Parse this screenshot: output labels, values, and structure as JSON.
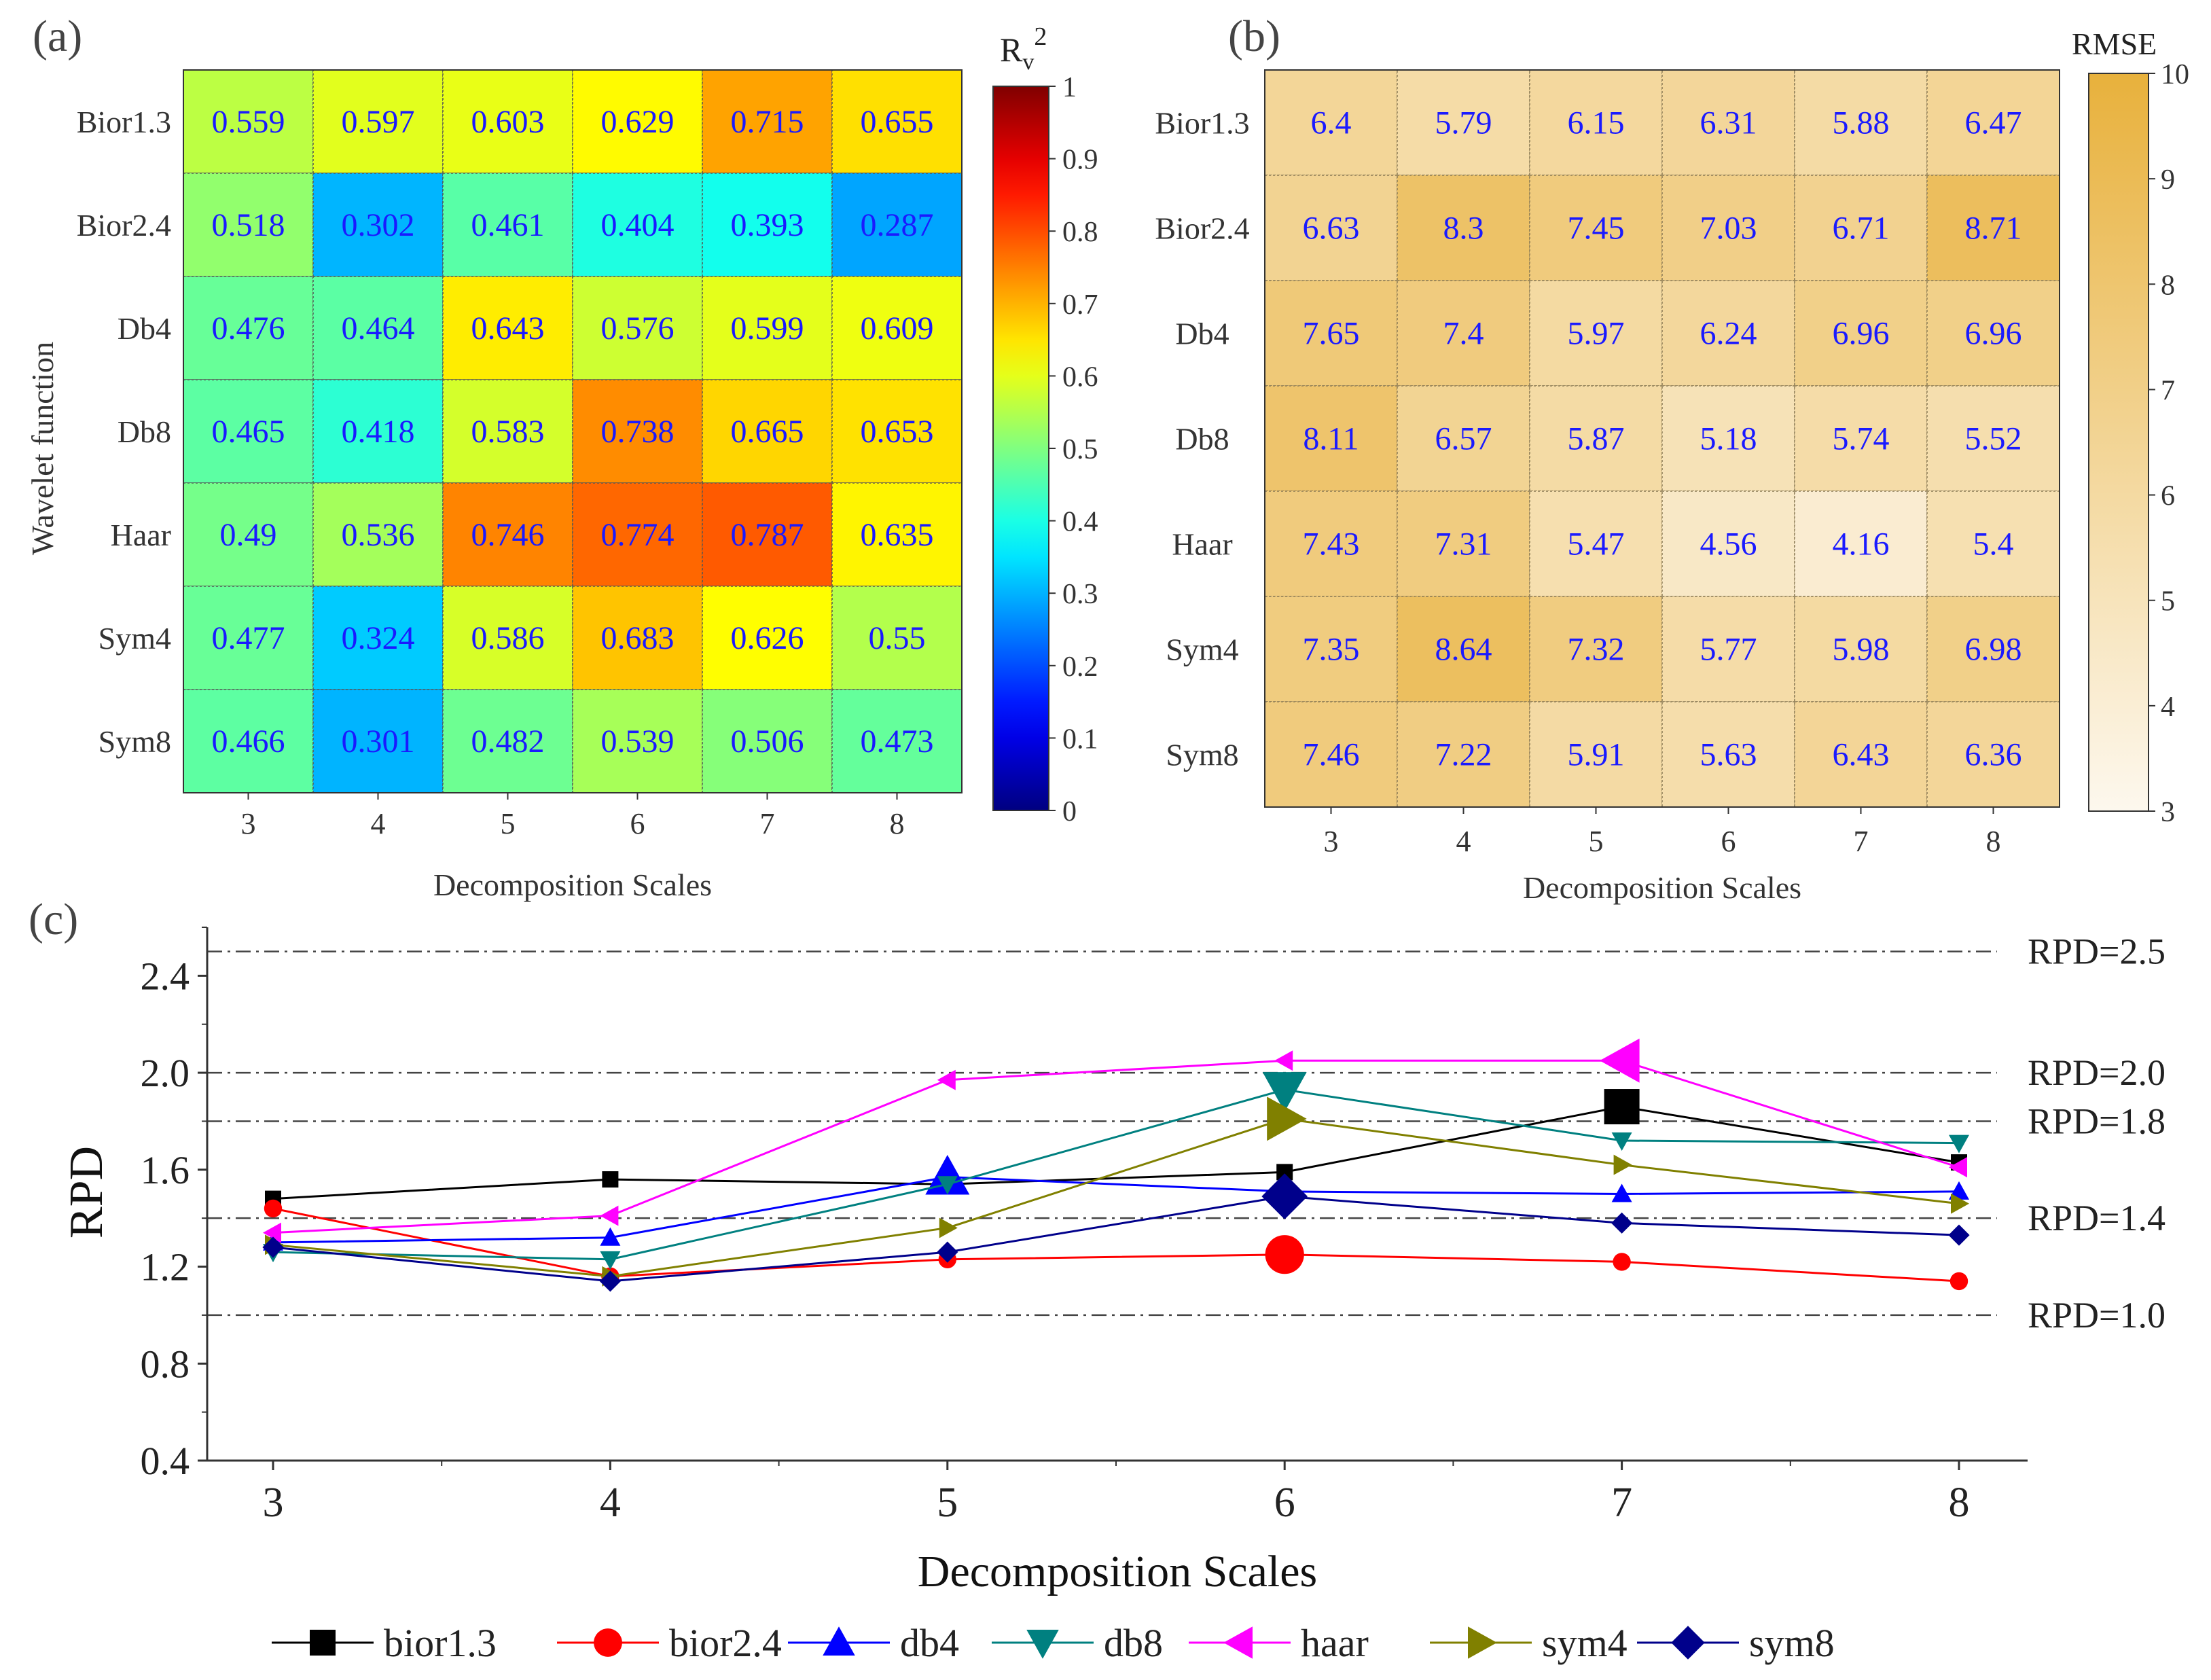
{
  "chart_data": [
    {
      "panel": "(a)",
      "type": "heatmap",
      "rows": [
        "Bior1.3",
        "Bior2.4",
        "Db4",
        "Db8",
        "Haar",
        "Sym4",
        "Sym8"
      ],
      "cols": [
        "3",
        "4",
        "5",
        "6",
        "7",
        "8"
      ],
      "values": [
        [
          0.559,
          0.597,
          0.603,
          0.629,
          0.715,
          0.655
        ],
        [
          0.518,
          0.302,
          0.461,
          0.404,
          0.393,
          0.287
        ],
        [
          0.476,
          0.464,
          0.643,
          0.576,
          0.599,
          0.609
        ],
        [
          0.465,
          0.418,
          0.583,
          0.738,
          0.665,
          0.653
        ],
        [
          0.49,
          0.536,
          0.746,
          0.774,
          0.787,
          0.635
        ],
        [
          0.477,
          0.324,
          0.586,
          0.683,
          0.626,
          0.55
        ],
        [
          0.466,
          0.301,
          0.482,
          0.539,
          0.506,
          0.473
        ]
      ],
      "xlabel": "Decomposition Scales",
      "ylabel": "Wavelet function",
      "colorbar": {
        "title": "R",
        "title_sub": "v",
        "title_sup": "2",
        "range": [
          0,
          1
        ],
        "ticks": [
          "0",
          "0.1",
          "0.2",
          "0.3",
          "0.4",
          "0.5",
          "0.6",
          "0.7",
          "0.8",
          "0.9",
          "1"
        ],
        "colormap": "jet"
      }
    },
    {
      "panel": "(b)",
      "type": "heatmap",
      "rows": [
        "Bior1.3",
        "Bior2.4",
        "Db4",
        "Db8",
        "Haar",
        "Sym4",
        "Sym8"
      ],
      "cols": [
        "3",
        "4",
        "5",
        "6",
        "7",
        "8"
      ],
      "values": [
        [
          6.4,
          5.79,
          6.15,
          6.31,
          5.88,
          6.47
        ],
        [
          6.63,
          8.3,
          7.45,
          7.03,
          6.71,
          8.71
        ],
        [
          7.65,
          7.4,
          5.97,
          6.24,
          6.96,
          6.96
        ],
        [
          8.11,
          6.57,
          5.87,
          5.18,
          5.74,
          5.52
        ],
        [
          7.43,
          7.31,
          5.47,
          4.56,
          4.16,
          5.4
        ],
        [
          7.35,
          8.64,
          7.32,
          5.77,
          5.98,
          6.98
        ],
        [
          7.46,
          7.22,
          5.91,
          5.63,
          6.43,
          6.36
        ]
      ],
      "xlabel": "Decomposition Scales",
      "colorbar": {
        "title": "RMSE",
        "range": [
          3,
          10
        ],
        "ticks": [
          "3",
          "4",
          "5",
          "6",
          "7",
          "8",
          "9",
          "10"
        ],
        "color_low": "#fdf8ee",
        "color_high": "#e8b13c"
      }
    },
    {
      "panel": "(c)",
      "type": "line",
      "x": [
        3,
        4,
        5,
        6,
        7,
        8
      ],
      "xlabel": "Decomposition Scales",
      "ylabel": "RPD",
      "xlim": [
        2.8,
        8.2
      ],
      "ylim": [
        0.4,
        2.6
      ],
      "yticks": [
        "0.4",
        "0.8",
        "1.2",
        "1.6",
        "2.0",
        "2.4"
      ],
      "xticks": [
        "3",
        "4",
        "5",
        "6",
        "7",
        "8"
      ],
      "series": [
        {
          "name": "bior1.3",
          "color": "#000000",
          "marker": "square",
          "highlight_index": 4,
          "values": [
            1.48,
            1.56,
            1.54,
            1.59,
            1.86,
            1.63
          ]
        },
        {
          "name": "bior2.4",
          "color": "#ff0000",
          "marker": "circle",
          "highlight_index": 3,
          "values": [
            1.44,
            1.16,
            1.23,
            1.25,
            1.22,
            1.14
          ]
        },
        {
          "name": "db4",
          "color": "#0000ff",
          "marker": "triangle-up",
          "highlight_index": 2,
          "values": [
            1.3,
            1.32,
            1.57,
            1.51,
            1.5,
            1.51
          ]
        },
        {
          "name": "db8",
          "color": "#008080",
          "marker": "triangle-down",
          "highlight_index": 3,
          "values": [
            1.26,
            1.23,
            1.54,
            1.93,
            1.72,
            1.71
          ]
        },
        {
          "name": "haar",
          "color": "#ff00ff",
          "marker": "triangle-left",
          "highlight_index": 4,
          "values": [
            1.34,
            1.41,
            1.97,
            2.05,
            2.05,
            1.61
          ]
        },
        {
          "name": "sym4",
          "color": "#808000",
          "marker": "triangle-right",
          "highlight_index": 3,
          "values": [
            1.29,
            1.16,
            1.36,
            1.81,
            1.62,
            1.46
          ]
        },
        {
          "name": "sym8",
          "color": "#00008b",
          "marker": "diamond",
          "highlight_index": 3,
          "values": [
            1.28,
            1.14,
            1.26,
            1.49,
            1.38,
            1.33
          ]
        }
      ],
      "reference_lines": [
        {
          "value": 2.5,
          "label": "RPD=2.5"
        },
        {
          "value": 2.0,
          "label": "RPD=2.0"
        },
        {
          "value": 1.8,
          "label": "RPD=1.8"
        },
        {
          "value": 1.4,
          "label": "RPD=1.4"
        },
        {
          "value": 1.0,
          "label": "RPD=1.0"
        }
      ],
      "legend_position": "bottom"
    }
  ]
}
